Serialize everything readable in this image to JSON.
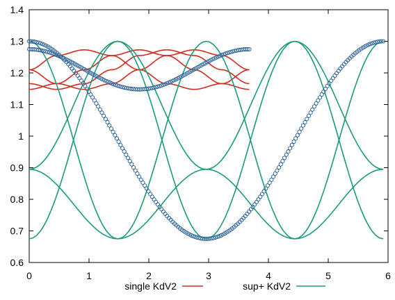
{
  "chart_data": {
    "type": "line",
    "xlim": [
      0,
      6
    ],
    "ylim": [
      0.6,
      1.4
    ],
    "xticks": [
      0,
      1,
      2,
      3,
      4,
      5,
      6
    ],
    "yticks": [
      0.6,
      0.7,
      0.8,
      0.9,
      1.0,
      1.1,
      1.2,
      1.3,
      1.4
    ],
    "xtick_labels": [
      "0",
      "1",
      "2",
      "3",
      "4",
      "5",
      "6"
    ],
    "ytick_labels": [
      "0.6",
      "0.7",
      "0.8",
      "0.9",
      "1",
      "1.1",
      "1.2",
      "1.3",
      "1.4"
    ],
    "grid": false,
    "legend_position": "bottom-center",
    "legend": [
      {
        "label": "single KdV2",
        "color": "#d62a1e"
      },
      {
        "label": "sup+ KdV2",
        "color": "#1a9c7a"
      }
    ],
    "series": [
      {
        "name": "single KdV2",
        "color": "#d62a1e",
        "curves": [
          {
            "x": [
              0,
              0.46,
              0.92,
              1.38,
              1.84,
              2.3,
              2.76,
              3.22,
              3.68
            ],
            "y": [
              1.21,
              1.255,
              1.273,
              1.255,
              1.21,
              1.166,
              1.148,
              1.166,
              1.21
            ]
          },
          {
            "x": [
              0,
              0.46,
              0.92,
              1.38,
              1.84,
              2.3,
              2.76,
              3.22,
              3.68
            ],
            "y": [
              1.166,
              1.148,
              1.166,
              1.21,
              1.255,
              1.273,
              1.255,
              1.21,
              1.166
            ]
          },
          {
            "x": [
              0,
              0.46,
              0.92,
              1.38,
              1.84,
              2.3,
              2.76,
              3.22,
              3.68
            ],
            "y": [
              1.148,
              1.166,
              1.21,
              1.255,
              1.273,
              1.255,
              1.21,
              1.166,
              1.148
            ]
          },
          {
            "x": [
              0,
              0.46,
              0.92,
              1.38,
              1.84,
              2.3,
              2.76,
              3.22,
              3.68
            ],
            "y": [
              1.21,
              1.166,
              1.148,
              1.166,
              1.21,
              1.255,
              1.273,
              1.255,
              1.21
            ]
          }
        ],
        "markers": {
          "x_range": [
            0,
            3.68
          ],
          "y_start": 1.275,
          "y_min": 1.148,
          "x_at_min": 1.84,
          "y_end": 1.275,
          "style": "open-circle",
          "marker_color": "#1f5a95"
        }
      },
      {
        "name": "sup+ KdV2",
        "color": "#1a9c7a",
        "curves": [
          {
            "x": [
              0,
              1.48,
              2.96,
              4.44,
              5.92
            ],
            "y": [
              0.675,
              1.3,
              0.675,
              1.3,
              0.675
            ],
            "shape": "cosine"
          },
          {
            "x": [
              0,
              1.48,
              2.96,
              4.44,
              5.92
            ],
            "y": [
              1.3,
              0.675,
              1.3,
              0.675,
              1.3
            ],
            "shape": "cosine"
          },
          {
            "x": [
              0,
              1.48,
              2.96,
              4.44,
              5.92
            ],
            "y": [
              0.895,
              1.3,
              0.895,
              0.675,
              0.895
            ],
            "shape": "cosine-shifted"
          },
          {
            "x": [
              0,
              1.48,
              2.96,
              4.44,
              5.92
            ],
            "y": [
              0.895,
              0.675,
              0.895,
              1.3,
              0.895
            ],
            "shape": "cosine-shifted"
          }
        ],
        "markers": {
          "x_range": [
            0,
            5.92
          ],
          "y_start": 1.3,
          "y_min": 0.675,
          "x_at_min": 2.96,
          "y_end": 1.3,
          "style": "open-circle",
          "marker_color": "#1f5a95"
        }
      }
    ]
  }
}
